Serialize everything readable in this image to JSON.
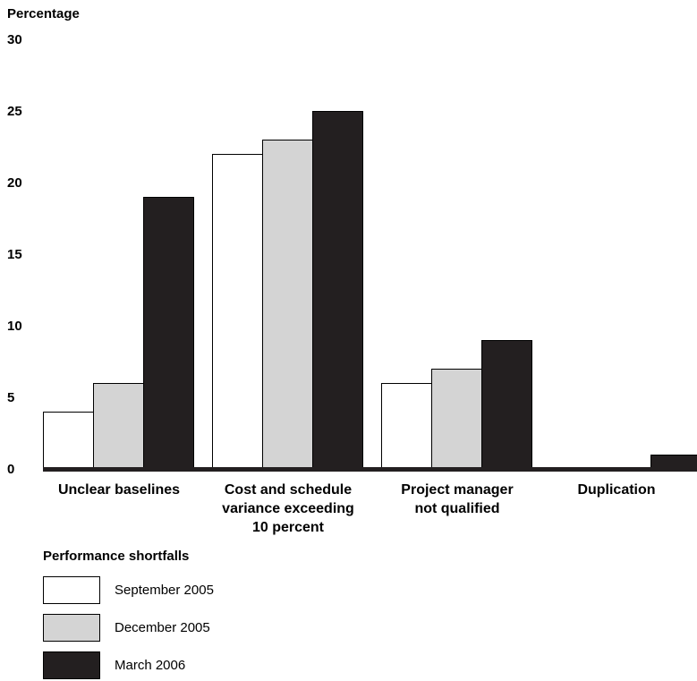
{
  "chart_data": {
    "type": "bar",
    "ylabel": "Percentage",
    "xlabel": "",
    "ylim": [
      0,
      30
    ],
    "yticks": [
      "0",
      "5",
      "10",
      "15",
      "20",
      "25",
      "30"
    ],
    "categories": [
      "Unclear baselines",
      "Cost and schedule\nvariance exceeding\n10 percent",
      "Project manager\nnot qualified",
      "Duplication"
    ],
    "series": [
      {
        "name": "September 2005",
        "color": "#ffffff",
        "values": [
          4,
          22,
          6,
          0
        ]
      },
      {
        "name": "December 2005",
        "color": "#d4d4d4",
        "values": [
          6,
          23,
          7,
          0
        ]
      },
      {
        "name": "March 2006",
        "color": "#231f20",
        "values": [
          19,
          25,
          9,
          1
        ]
      }
    ],
    "legend_title": "Performance shortfalls",
    "legend_position": "bottom-left",
    "grid": false
  }
}
